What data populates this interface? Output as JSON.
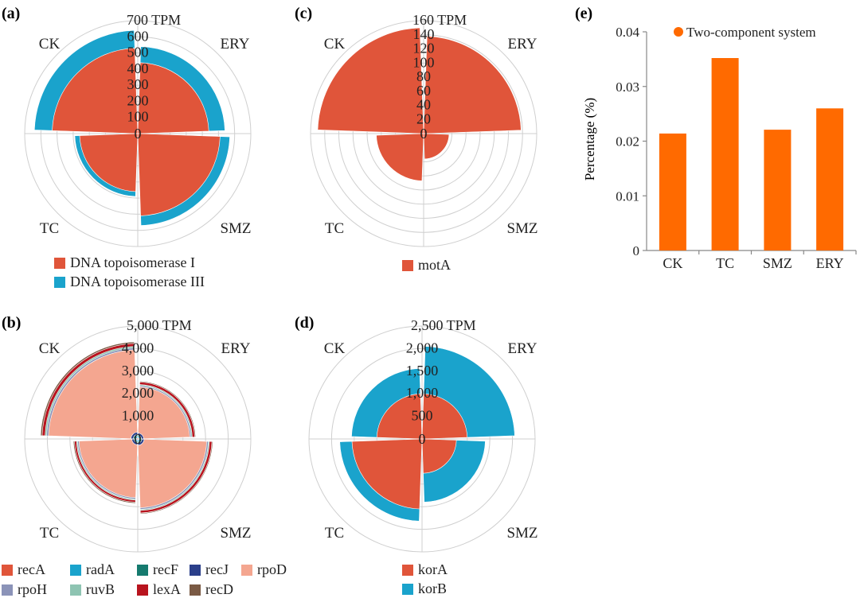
{
  "colors": {
    "red": "#e0553a",
    "blue": "#1aa3cc",
    "orange": "#ff6a00",
    "grid": "#cfcfcf",
    "recA": "#e0553a",
    "radA": "#1aa3cc",
    "recF": "#157a6e",
    "recJ": "#2b3f8a",
    "rpoD": "#f4a690",
    "rpoH": "#8b93b8",
    "ruvB": "#8ec4b2",
    "lexA": "#b8141e",
    "recD": "#7a5a44"
  },
  "chart_data": [
    {
      "id": "a",
      "panel_label": "(a)",
      "type": "polar-bar",
      "categories": [
        "CK",
        "ERY",
        "SMZ",
        "TC"
      ],
      "rings": [
        "0",
        "100",
        "200",
        "300",
        "400",
        "500",
        "600",
        "700 TPM"
      ],
      "max": 700,
      "series": [
        {
          "name": "DNA topoisomerase I",
          "key": "red",
          "values": [
            530,
            440,
            510,
            360
          ]
        },
        {
          "name": "DNA topoisomerase III",
          "key": "blue",
          "values": [
            640,
            540,
            570,
            390
          ]
        }
      ]
    },
    {
      "id": "c",
      "panel_label": "(c)",
      "type": "polar-bar",
      "categories": [
        "CK",
        "ERY",
        "SMZ",
        "TC"
      ],
      "rings": [
        "0",
        "20",
        "40",
        "60",
        "80",
        "100",
        "120",
        "140",
        "160 TPM"
      ],
      "max": 160,
      "series": [
        {
          "name": "motA",
          "key": "red",
          "values": [
            150,
            138,
            36,
            67
          ]
        }
      ]
    },
    {
      "id": "b",
      "panel_label": "(b)",
      "type": "polar-bar",
      "categories": [
        "CK",
        "ERY",
        "SMZ",
        "TC"
      ],
      "rings": [
        "0",
        "1,000",
        "2,000",
        "3,000",
        "4,000",
        "5,000 TPM"
      ],
      "max": 5000,
      "series": [
        {
          "name": "recA",
          "key": "recA",
          "values": [
            60,
            50,
            55,
            50
          ]
        },
        {
          "name": "radA",
          "key": "radA",
          "values": [
            130,
            110,
            120,
            110
          ]
        },
        {
          "name": "recF",
          "key": "recF",
          "values": [
            200,
            170,
            185,
            170
          ]
        },
        {
          "name": "recJ",
          "key": "recJ",
          "values": [
            300,
            260,
            280,
            260
          ]
        },
        {
          "name": "rpoD",
          "key": "rpoD",
          "values": [
            3950,
            2300,
            3050,
            2600
          ]
        },
        {
          "name": "rpoH",
          "key": "rpoH",
          "values": [
            4030,
            2360,
            3120,
            2660
          ]
        },
        {
          "name": "ruvB",
          "key": "ruvB",
          "values": [
            4100,
            2410,
            3170,
            2710
          ]
        },
        {
          "name": "lexA",
          "key": "lexA",
          "values": [
            4230,
            2520,
            3280,
            2800
          ]
        },
        {
          "name": "recD",
          "key": "recD",
          "values": [
            4300,
            2560,
            3320,
            2850
          ]
        }
      ]
    },
    {
      "id": "d",
      "panel_label": "(d)",
      "type": "polar-bar",
      "categories": [
        "CK",
        "ERY",
        "SMZ",
        "TC"
      ],
      "rings": [
        "0",
        "500",
        "1,000",
        "1,500",
        "2,000",
        "2,500 TPM"
      ],
      "max": 2500,
      "series": [
        {
          "name": "korA",
          "key": "red",
          "values": [
            1000,
            1000,
            760,
            1550
          ]
        },
        {
          "name": "korB",
          "key": "blue",
          "values": [
            1560,
            2050,
            1400,
            1820
          ]
        }
      ]
    },
    {
      "id": "e",
      "panel_label": "(e)",
      "type": "bar",
      "title": "",
      "xlabel": "",
      "ylabel": "Percentage (%)",
      "categories": [
        "CK",
        "TC",
        "SMZ",
        "ERY"
      ],
      "series": [
        {
          "name": "Two-component system",
          "values": [
            0.0214,
            0.0352,
            0.0221,
            0.026
          ]
        }
      ],
      "ylim": [
        0,
        0.04
      ],
      "yticks": [
        "0",
        "0.01",
        "0.02",
        "0.03",
        "0.04"
      ],
      "legend": "top-right"
    }
  ]
}
